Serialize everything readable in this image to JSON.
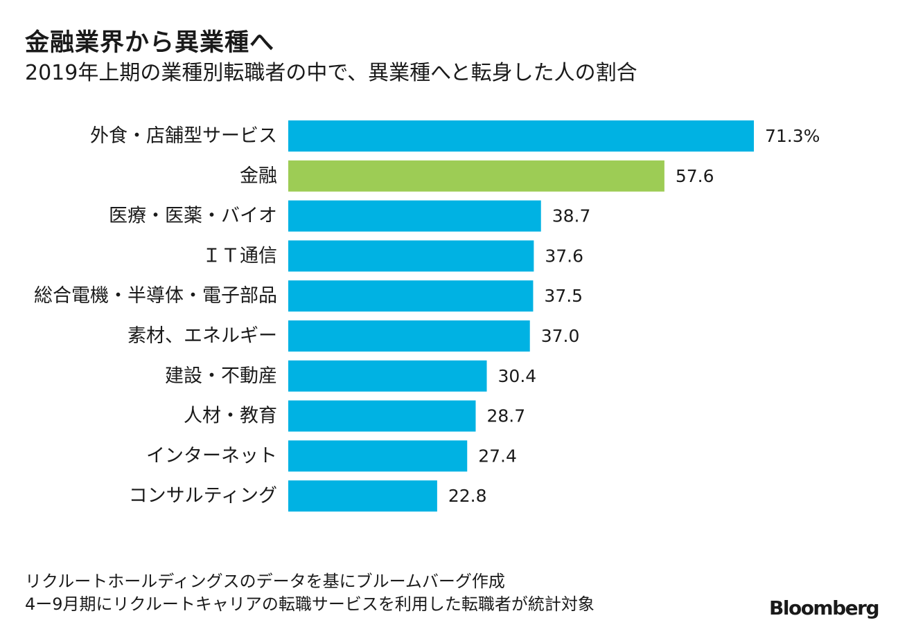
{
  "header": {
    "title": "金融業界から異業種へ",
    "subtitle": "2019年上期の業種別転職者の中で、異業種へと転身した人の割合"
  },
  "chart_data": {
    "type": "bar",
    "orientation": "horizontal",
    "title": "金融業界から異業種へ",
    "subtitle": "2019年上期の業種別転職者の中で、異業種へと転身した人の割合",
    "unit": "%",
    "categories": [
      "外食・店舗型サービス",
      "金融",
      "医療・医薬・バイオ",
      "ＩＴ通信",
      "総合電機・半導体・電子部品",
      "素材、エネルギー",
      "建設・不動産",
      "人材・教育",
      "インターネット",
      "コンサルティング"
    ],
    "values": [
      71.3,
      57.6,
      38.7,
      37.6,
      37.5,
      37.0,
      30.4,
      28.7,
      27.4,
      22.8
    ],
    "value_labels": [
      "71.3%",
      "57.6",
      "38.7",
      "37.6",
      "37.5",
      "37.0",
      "30.4",
      "28.7",
      "27.4",
      "22.8"
    ],
    "highlight_index": 1,
    "xlim": [
      0,
      71.3
    ],
    "grid": false,
    "colors": {
      "default": "#00b2e3",
      "highlight": "#9dcc55"
    }
  },
  "footer": {
    "note1": "リクルートホールディングスのデータを基にブルームバーグ作成",
    "note2": "4ー9月期にリクルートキャリアの転職サービスを利用した転職者が統計対象",
    "brand": "Bloomberg"
  }
}
